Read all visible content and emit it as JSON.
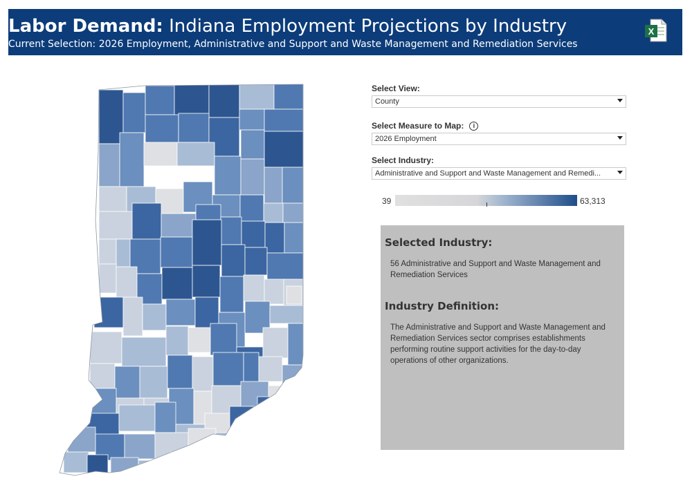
{
  "header": {
    "title_bold": "Labor Demand:",
    "title_rest": " Indiana Employment Projections by Industry",
    "subtitle": "Current Selection: 2026 Employment, Administrative and Support and Waste Management and Remediation Services",
    "export_icon": "excel-file-icon"
  },
  "controls": {
    "view": {
      "label": "Select View:",
      "value": "County"
    },
    "measure": {
      "label": "Select Measure to Map:",
      "value": "2026 Employment",
      "info_icon": "info-icon"
    },
    "industry": {
      "label": "Select Industry:",
      "value": "Administrative and Support and Waste Management and Remedi..."
    }
  },
  "legend": {
    "min": "39",
    "max": "63,313",
    "low_color": "#e0e0e0",
    "high_color": "#1f4e8a"
  },
  "panel": {
    "selected_heading": "Selected Industry:",
    "selected_text": "56  Administrative and Support and Waste Management and Remediation Services",
    "definition_heading": "Industry Definition:",
    "definition_text": "The Administrative and Support and Waste Management and Remediation Services sector comprises establishments performing routine support activities for the day-to-day operations of other organizations."
  },
  "map": {
    "name": "Indiana counties choropleth"
  }
}
